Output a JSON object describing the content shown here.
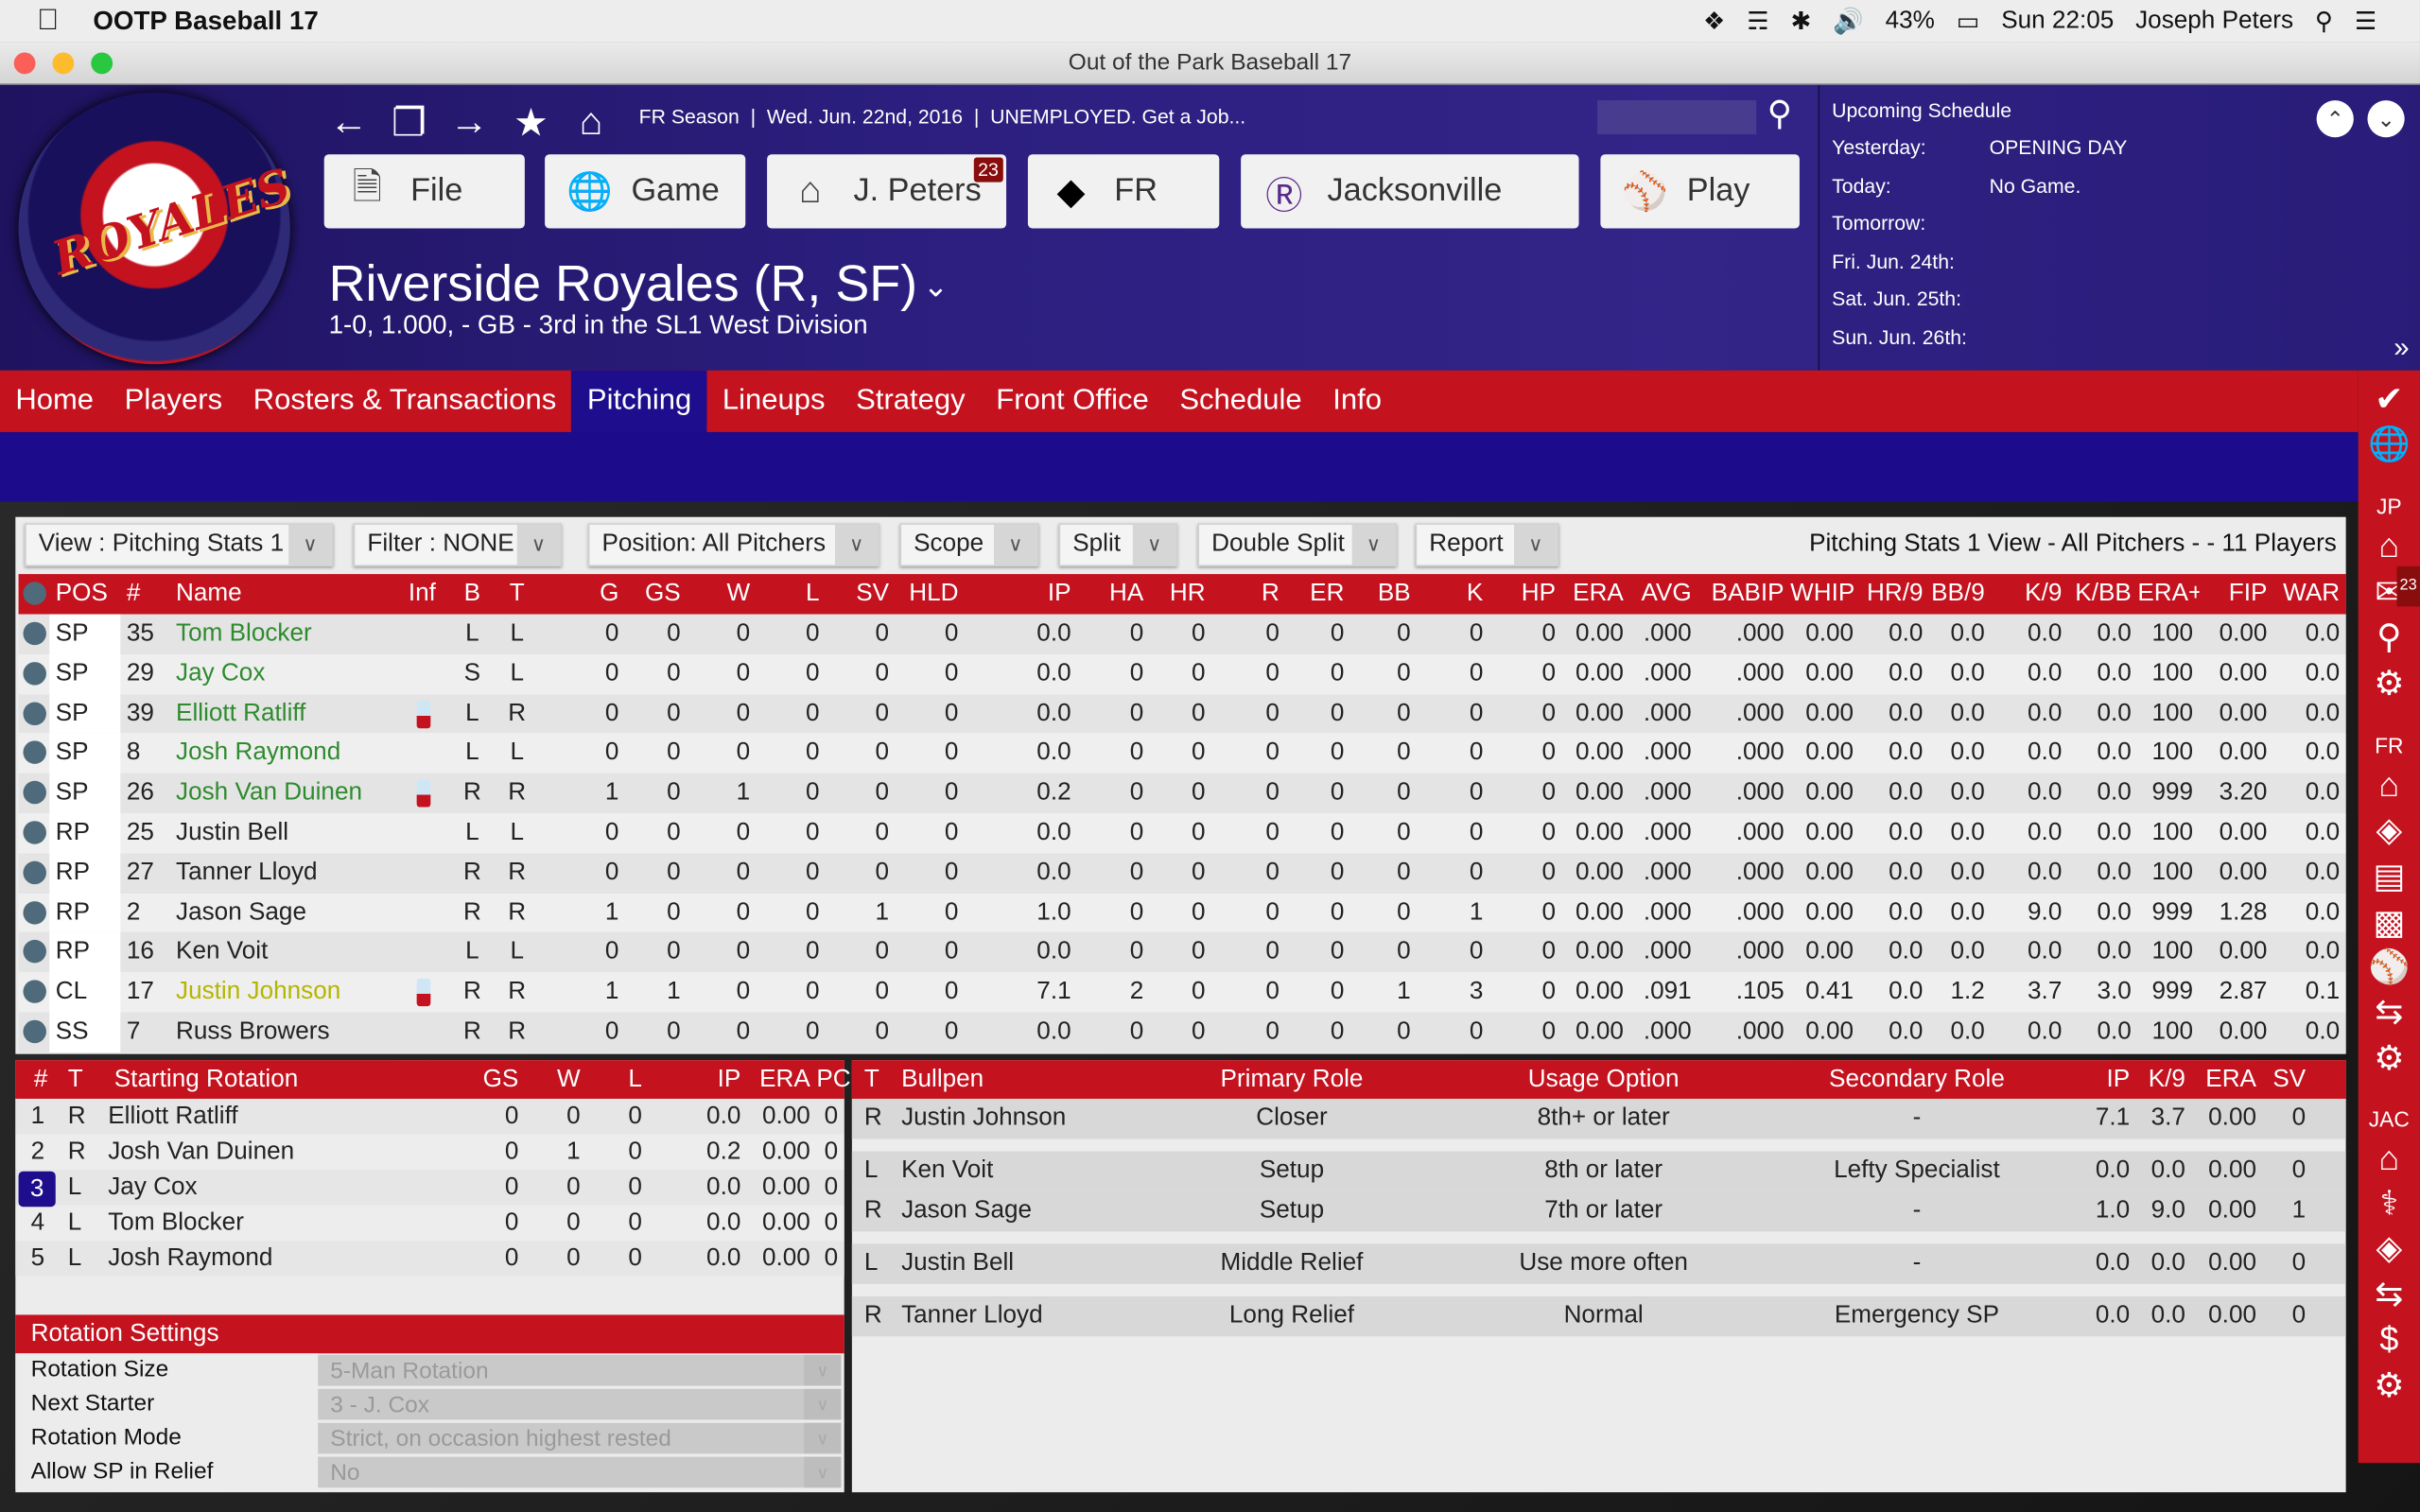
{
  "menubar": {
    "app": "OOTP Baseball 17",
    "battery": "43%",
    "clock": "Sun 22:05",
    "user": "Joseph Peters"
  },
  "window": {
    "title": "Out of the Park Baseball 17"
  },
  "header": {
    "crumb": "FR Season  |  Wed. Jun. 22nd, 2016  |  UNEMPLOYED. Get a Job...",
    "logo_text": "ROYALES",
    "buttons": [
      {
        "label": "File",
        "icon": "file-icon"
      },
      {
        "label": "Game",
        "icon": "globe-icon"
      },
      {
        "label": "J. Peters",
        "icon": "home-icon",
        "badge": "23"
      },
      {
        "label": "FR",
        "icon": "fr-logo-icon"
      },
      {
        "label": "Jacksonville",
        "icon": "jacksonville-logo-icon"
      },
      {
        "label": "Play",
        "icon": "baseball-icon"
      }
    ],
    "team_name": "Riverside Royales (R, SF)",
    "team_sub": "1-0, 1.000, - GB - 3rd in the SL1 West Division"
  },
  "schedule": {
    "title": "Upcoming Schedule",
    "rows": [
      {
        "label": "Yesterday:",
        "value": "OPENING DAY"
      },
      {
        "label": "Today:",
        "value": "No Game."
      },
      {
        "label": "Tomorrow:",
        "value": ""
      },
      {
        "label": "Fri. Jun. 24th:",
        "value": ""
      },
      {
        "label": "Sat. Jun. 25th:",
        "value": ""
      },
      {
        "label": "Sun. Jun. 26th:",
        "value": ""
      }
    ]
  },
  "nav": [
    "Home",
    "Players",
    "Rosters & Transactions",
    "Pitching",
    "Lineups",
    "Strategy",
    "Front Office",
    "Schedule",
    "Info"
  ],
  "nav_active": "Pitching",
  "sidebar": {
    "labels": {
      "jp": "JP",
      "fr": "FR",
      "jac": "JAC"
    },
    "mail_badge": "23"
  },
  "toolbar": {
    "dropdowns": [
      "View : Pitching Stats 1",
      "Filter : NONE",
      "Position: All Pitchers",
      "Scope",
      "Split",
      "Double Split",
      "Report"
    ],
    "summary": "Pitching Stats 1 View - All Pitchers -  - 11 Players"
  },
  "table": {
    "columns": [
      "POS",
      "#",
      "Name",
      "Inf",
      "B",
      "T",
      "G",
      "GS",
      "W",
      "L",
      "SV",
      "HLD",
      "IP",
      "HA",
      "HR",
      "R",
      "ER",
      "BB",
      "K",
      "HP",
      "ERA",
      "AVG",
      "BABIP",
      "WHIP",
      "HR/9",
      "BB/9",
      "K/9",
      "K/BB",
      "ERA+",
      "FIP",
      "WAR"
    ],
    "colors": {
      "green": "#2e8b2e",
      "yellow": "#b5b500",
      "default": "#222222"
    },
    "rows": [
      {
        "pos": "SP",
        "num": "35",
        "name": "Tom Blocker",
        "color": "green",
        "inf": false,
        "b": "L",
        "t": "L",
        "stats": [
          "0",
          "0",
          "0",
          "0",
          "0",
          "0",
          "0.0",
          "0",
          "0",
          "0",
          "0",
          "0",
          "0",
          "0",
          "0.00",
          ".000",
          ".000",
          "0.00",
          "0.0",
          "0.0",
          "0.0",
          "0.0",
          "100",
          "0.00",
          "0.0"
        ]
      },
      {
        "pos": "SP",
        "num": "29",
        "name": "Jay Cox",
        "color": "green",
        "inf": false,
        "b": "S",
        "t": "L",
        "stats": [
          "0",
          "0",
          "0",
          "0",
          "0",
          "0",
          "0.0",
          "0",
          "0",
          "0",
          "0",
          "0",
          "0",
          "0",
          "0.00",
          ".000",
          ".000",
          "0.00",
          "0.0",
          "0.0",
          "0.0",
          "0.0",
          "100",
          "0.00",
          "0.0"
        ]
      },
      {
        "pos": "SP",
        "num": "39",
        "name": "Elliott Ratliff",
        "color": "green",
        "inf": true,
        "b": "L",
        "t": "R",
        "stats": [
          "0",
          "0",
          "0",
          "0",
          "0",
          "0",
          "0.0",
          "0",
          "0",
          "0",
          "0",
          "0",
          "0",
          "0",
          "0.00",
          ".000",
          ".000",
          "0.00",
          "0.0",
          "0.0",
          "0.0",
          "0.0",
          "100",
          "0.00",
          "0.0"
        ]
      },
      {
        "pos": "SP",
        "num": "8",
        "name": "Josh Raymond",
        "color": "green",
        "inf": false,
        "b": "L",
        "t": "L",
        "stats": [
          "0",
          "0",
          "0",
          "0",
          "0",
          "0",
          "0.0",
          "0",
          "0",
          "0",
          "0",
          "0",
          "0",
          "0",
          "0.00",
          ".000",
          ".000",
          "0.00",
          "0.0",
          "0.0",
          "0.0",
          "0.0",
          "100",
          "0.00",
          "0.0"
        ]
      },
      {
        "pos": "SP",
        "num": "26",
        "name": "Josh Van Duinen",
        "color": "green",
        "inf": true,
        "b": "R",
        "t": "R",
        "stats": [
          "1",
          "0",
          "1",
          "0",
          "0",
          "0",
          "0.2",
          "0",
          "0",
          "0",
          "0",
          "0",
          "0",
          "0",
          "0.00",
          ".000",
          ".000",
          "0.00",
          "0.0",
          "0.0",
          "0.0",
          "0.0",
          "999",
          "3.20",
          "0.0"
        ]
      },
      {
        "pos": "RP",
        "num": "25",
        "name": "Justin Bell",
        "color": "default",
        "inf": false,
        "b": "L",
        "t": "L",
        "stats": [
          "0",
          "0",
          "0",
          "0",
          "0",
          "0",
          "0.0",
          "0",
          "0",
          "0",
          "0",
          "0",
          "0",
          "0",
          "0.00",
          ".000",
          ".000",
          "0.00",
          "0.0",
          "0.0",
          "0.0",
          "0.0",
          "100",
          "0.00",
          "0.0"
        ]
      },
      {
        "pos": "RP",
        "num": "27",
        "name": "Tanner Lloyd",
        "color": "default",
        "inf": false,
        "b": "R",
        "t": "R",
        "stats": [
          "0",
          "0",
          "0",
          "0",
          "0",
          "0",
          "0.0",
          "0",
          "0",
          "0",
          "0",
          "0",
          "0",
          "0",
          "0.00",
          ".000",
          ".000",
          "0.00",
          "0.0",
          "0.0",
          "0.0",
          "0.0",
          "100",
          "0.00",
          "0.0"
        ]
      },
      {
        "pos": "RP",
        "num": "2",
        "name": "Jason Sage",
        "color": "default",
        "inf": false,
        "b": "R",
        "t": "R",
        "stats": [
          "1",
          "0",
          "0",
          "0",
          "1",
          "0",
          "1.0",
          "0",
          "0",
          "0",
          "0",
          "0",
          "1",
          "0",
          "0.00",
          ".000",
          ".000",
          "0.00",
          "0.0",
          "0.0",
          "9.0",
          "0.0",
          "999",
          "1.28",
          "0.0"
        ]
      },
      {
        "pos": "RP",
        "num": "16",
        "name": "Ken Voit",
        "color": "default",
        "inf": false,
        "b": "L",
        "t": "L",
        "stats": [
          "0",
          "0",
          "0",
          "0",
          "0",
          "0",
          "0.0",
          "0",
          "0",
          "0",
          "0",
          "0",
          "0",
          "0",
          "0.00",
          ".000",
          ".000",
          "0.00",
          "0.0",
          "0.0",
          "0.0",
          "0.0",
          "100",
          "0.00",
          "0.0"
        ]
      },
      {
        "pos": "CL",
        "num": "17",
        "name": "Justin Johnson",
        "color": "yellow",
        "inf": true,
        "b": "R",
        "t": "R",
        "stats": [
          "1",
          "1",
          "0",
          "0",
          "0",
          "0",
          "7.1",
          "2",
          "0",
          "0",
          "0",
          "1",
          "3",
          "0",
          "0.00",
          ".091",
          ".105",
          "0.41",
          "0.0",
          "1.2",
          "3.7",
          "3.0",
          "999",
          "2.87",
          "0.1"
        ]
      },
      {
        "pos": "SS",
        "num": "7",
        "name": "Russ Browers",
        "color": "default",
        "inf": false,
        "b": "R",
        "t": "R",
        "stats": [
          "0",
          "0",
          "0",
          "0",
          "0",
          "0",
          "0.0",
          "0",
          "0",
          "0",
          "0",
          "0",
          "0",
          "0",
          "0.00",
          ".000",
          ".000",
          "0.00",
          "0.0",
          "0.0",
          "0.0",
          "0.0",
          "100",
          "0.00",
          "0.0"
        ]
      }
    ]
  },
  "rotation": {
    "columns": [
      "#",
      "T",
      "Starting Rotation",
      "GS",
      "W",
      "L",
      "IP",
      "ERA",
      "PCnt"
    ],
    "selected": "3",
    "rows": [
      [
        "1",
        "R",
        "Elliott Ratliff",
        "0",
        "0",
        "0",
        "0.0",
        "0.00",
        "0"
      ],
      [
        "2",
        "R",
        "Josh Van Duinen",
        "0",
        "1",
        "0",
        "0.2",
        "0.00",
        "0"
      ],
      [
        "3",
        "L",
        "Jay Cox",
        "0",
        "0",
        "0",
        "0.0",
        "0.00",
        "0"
      ],
      [
        "4",
        "L",
        "Tom Blocker",
        "0",
        "0",
        "0",
        "0.0",
        "0.00",
        "0"
      ],
      [
        "5",
        "L",
        "Josh Raymond",
        "0",
        "0",
        "0",
        "0.0",
        "0.00",
        "0"
      ]
    ],
    "settings_title": "Rotation Settings",
    "settings": [
      {
        "label": "Rotation Size",
        "value": "5-Man Rotation"
      },
      {
        "label": "Next Starter",
        "value": "3 - J. Cox"
      },
      {
        "label": "Rotation Mode",
        "value": "Strict, on occasion highest rested"
      },
      {
        "label": "Allow SP in Relief",
        "value": "No"
      }
    ]
  },
  "bullpen": {
    "columns": [
      "T",
      "Bullpen",
      "Primary Role",
      "Usage Option",
      "Secondary Role",
      "IP",
      "K/9",
      "ERA",
      "SV"
    ],
    "rows": [
      [
        "R",
        "Justin Johnson",
        "Closer",
        "8th+ or later",
        "-",
        "7.1",
        "3.7",
        "0.00",
        "0"
      ],
      [
        "L",
        "Ken Voit",
        "Setup",
        "8th or later",
        "Lefty Specialist",
        "0.0",
        "0.0",
        "0.00",
        "0"
      ],
      [
        "R",
        "Jason Sage",
        "Setup",
        "7th or later",
        "-",
        "1.0",
        "9.0",
        "0.00",
        "1"
      ],
      [
        "L",
        "Justin Bell",
        "Middle Relief",
        "Use more often",
        "-",
        "0.0",
        "0.0",
        "0.00",
        "0"
      ],
      [
        "R",
        "Tanner Lloyd",
        "Long Relief",
        "Normal",
        "Emergency SP",
        "0.0",
        "0.0",
        "0.00",
        "0"
      ]
    ]
  }
}
